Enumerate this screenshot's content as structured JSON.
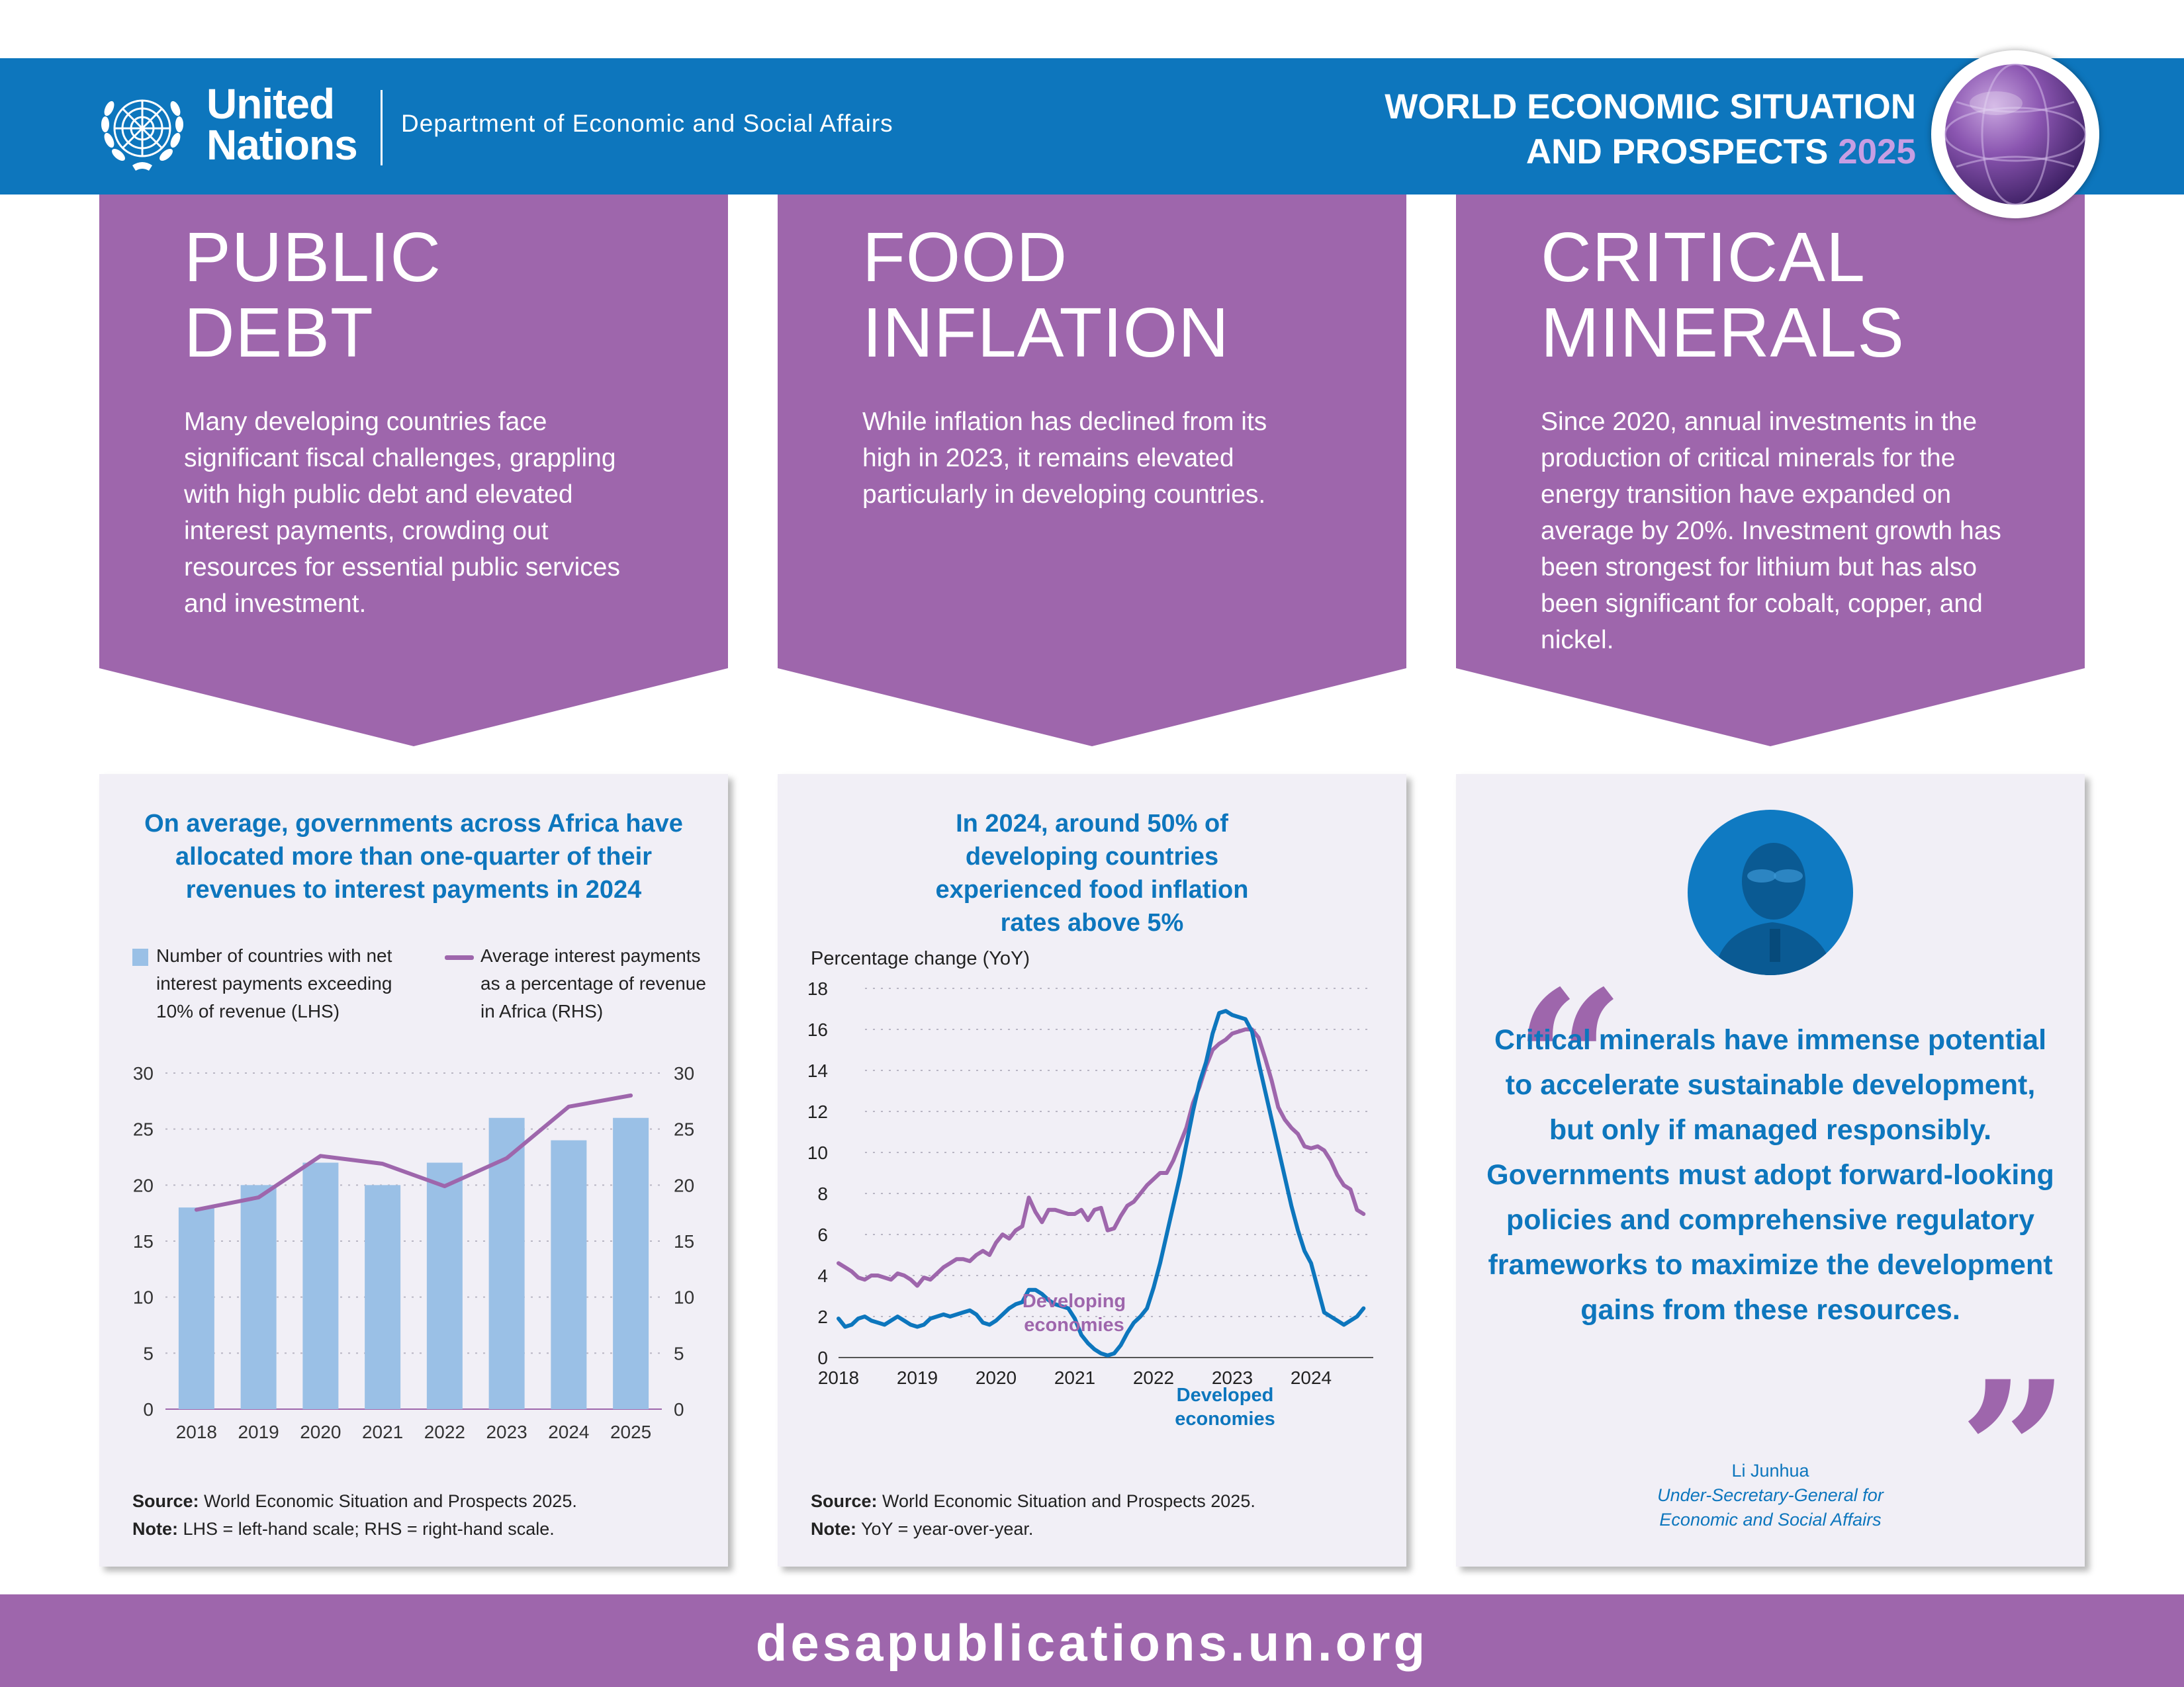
{
  "header": {
    "un_line1": "United",
    "un_line2": "Nations",
    "department": "Department of Economic and Social Affairs",
    "report_line1": "WORLD ECONOMIC SITUATION",
    "report_line2": "AND PROSPECTS",
    "report_year": "2025",
    "emblem_icon": "un-emblem-icon",
    "globe_icon": "globe-icon"
  },
  "panels": [
    {
      "title_line1": "PUBLIC",
      "title_line2": "DEBT",
      "text": "Many developing countries face significant fiscal challenges, grappling with high public debt and elevated interest payments, crowding out resources for essential public services and investment."
    },
    {
      "title_line1": "FOOD",
      "title_line2": "INFLATION",
      "text": "While inflation has declined from its high in 2023, it remains elevated particularly in developing countries."
    },
    {
      "title_line1": "CRITICAL",
      "title_line2": "MINERALS",
      "text": "Since 2020, annual investments in the production of critical minerals for the energy transition have expanded on average by 20%. Investment growth has been strongest for lithium but has also been significant for cobalt, copper, and nickel."
    }
  ],
  "debt_card": {
    "title": "On average, governments across Africa have allocated more than one-quarter of their revenues to interest payments in 2024",
    "legend_bar": "Number of countries with net interest payments exceeding 10% of revenue (LHS)",
    "legend_line": "Average interest payments as a percentage of revenue in Africa (RHS)",
    "source_label": "Source:",
    "source_text": " World Economic Situation and Prospects 2025.",
    "note_label": "Note:",
    "note_text": " LHS = left-hand scale; RHS = right-hand scale."
  },
  "inflation_card": {
    "title": "In 2024, around 50% of developing countries experienced food inflation rates above 5%",
    "y_axis_label": "Percentage change (YoY)",
    "label_developing_1": "Developing",
    "label_developing_2": "economies",
    "label_developed_1": "Developed",
    "label_developed_2": "economies",
    "source_label": "Source:",
    "source_text": " World Economic Situation and Prospects 2025.",
    "note_label": "Note:",
    "note_text": " YoY = year-over-year."
  },
  "quote_card": {
    "quote": "Critical minerals have immense potential to accelerate sustainable development, but only if managed responsibly. Governments must adopt forward-looking policies and comprehensive regulatory frameworks to maximize the development gains from these resources.",
    "speaker": "Li Junhua",
    "speaker_title_line1": "Under-Secretary-General for",
    "speaker_title_line2": "Economic and Social Affairs",
    "open_quote": "“",
    "close_quote": "”"
  },
  "footer": {
    "url": "desapublications.un.org"
  },
  "colors": {
    "un_blue": "#0d76bd",
    "purple": "#9e66ac",
    "bar_blue": "#9ac0e6",
    "card_bg": "#f1eff6"
  },
  "chart_data": [
    {
      "type": "bar",
      "categories": [
        "2018",
        "2019",
        "2020",
        "2021",
        "2022",
        "2023",
        "2024",
        "2025"
      ],
      "series": [
        {
          "name": "Number of countries with net interest payments exceeding 10% of revenue (LHS)",
          "type": "bar",
          "axis": "left",
          "values": [
            18,
            20,
            22,
            20,
            22,
            26,
            24,
            26
          ]
        },
        {
          "name": "Average interest payments as a percentage of revenue in Africa (RHS)",
          "type": "line",
          "axis": "right",
          "values": [
            17.8,
            18.9,
            22.6,
            21.9,
            19.9,
            22.4,
            27,
            28
          ]
        }
      ],
      "ylim": [
        0,
        30
      ],
      "yticks": [
        0,
        5,
        10,
        15,
        20,
        25,
        30
      ],
      "grid": true
    },
    {
      "type": "line",
      "ylabel": "Percentage change (YoY)",
      "ylim": [
        0,
        18
      ],
      "yticks": [
        0,
        2,
        4,
        6,
        8,
        10,
        12,
        14,
        16,
        18
      ],
      "xticks": [
        "2018",
        "2019",
        "2020",
        "2021",
        "2022",
        "2023",
        "2024"
      ],
      "x_start": "2018-01",
      "x_end": "2024-09",
      "grid": true,
      "series": [
        {
          "name": "Developing economies",
          "values": [
            4.6,
            4.4,
            4.2,
            3.9,
            3.8,
            4.0,
            4.0,
            3.9,
            3.8,
            4.1,
            4.0,
            3.8,
            3.5,
            3.9,
            3.8,
            4.1,
            4.4,
            4.6,
            4.8,
            4.8,
            4.7,
            5.0,
            5.2,
            5.0,
            5.6,
            6.0,
            5.8,
            6.2,
            6.4,
            7.8,
            7.1,
            6.6,
            7.2,
            7.2,
            7.1,
            7.0,
            7.0,
            7.2,
            6.7,
            7.2,
            7.3,
            6.2,
            6.3,
            6.9,
            7.4,
            7.6,
            8.0,
            8.4,
            8.7,
            9.0,
            9.0,
            9.6,
            10.4,
            11.2,
            12.4,
            13.2,
            14.2,
            15.0,
            15.3,
            15.5,
            15.8,
            15.9,
            16.0,
            16.0,
            15.6,
            14.6,
            13.5,
            12.2,
            11.6,
            11.2,
            10.9,
            10.3,
            10.2,
            10.3,
            10.1,
            9.6,
            8.9,
            8.4,
            8.2,
            7.2,
            7.0
          ]
        },
        {
          "name": "Developed economies",
          "values": [
            1.9,
            1.5,
            1.6,
            1.9,
            2.0,
            1.8,
            1.7,
            1.6,
            1.8,
            2.0,
            1.8,
            1.6,
            1.5,
            1.6,
            1.9,
            2.0,
            2.1,
            2.0,
            2.1,
            2.2,
            2.3,
            2.1,
            1.7,
            1.6,
            1.8,
            2.1,
            2.4,
            2.6,
            2.7,
            3.3,
            3.3,
            3.1,
            2.8,
            2.6,
            2.5,
            2.4,
            1.9,
            1.1,
            0.7,
            0.4,
            0.2,
            0.1,
            0.2,
            0.6,
            1.2,
            1.7,
            2.0,
            2.4,
            3.4,
            4.6,
            6.0,
            7.4,
            8.8,
            10.4,
            12.0,
            13.4,
            14.4,
            15.8,
            16.8,
            16.9,
            16.7,
            16.6,
            16.5,
            15.9,
            14.4,
            13.0,
            11.6,
            10.2,
            8.8,
            7.4,
            6.2,
            5.2,
            4.6,
            3.4,
            2.2,
            2.0,
            1.8,
            1.6,
            1.8,
            2.0,
            2.4
          ]
        }
      ]
    }
  ]
}
